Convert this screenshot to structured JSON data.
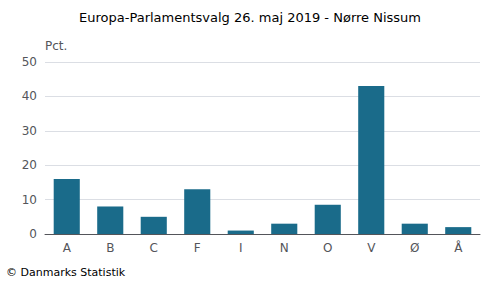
{
  "chart_data": {
    "type": "bar",
    "title": "Europa-Parlamentsvalg 26. maj 2019 - Nørre Nissum",
    "ylabel": "Pct.",
    "annotations": [
      "© Danmarks Statistik"
    ],
    "categories": [
      "A",
      "B",
      "C",
      "F",
      "I",
      "N",
      "O",
      "V",
      "Ø",
      "Å"
    ],
    "values": [
      16.0,
      8.0,
      5.0,
      13.0,
      1.0,
      3.0,
      8.5,
      43.0,
      3.0,
      2.0
    ],
    "color": "#1a6b8a",
    "ylim": [
      0,
      50
    ],
    "yticks": [
      0,
      10,
      20,
      30,
      40,
      50
    ],
    "grid": true
  }
}
